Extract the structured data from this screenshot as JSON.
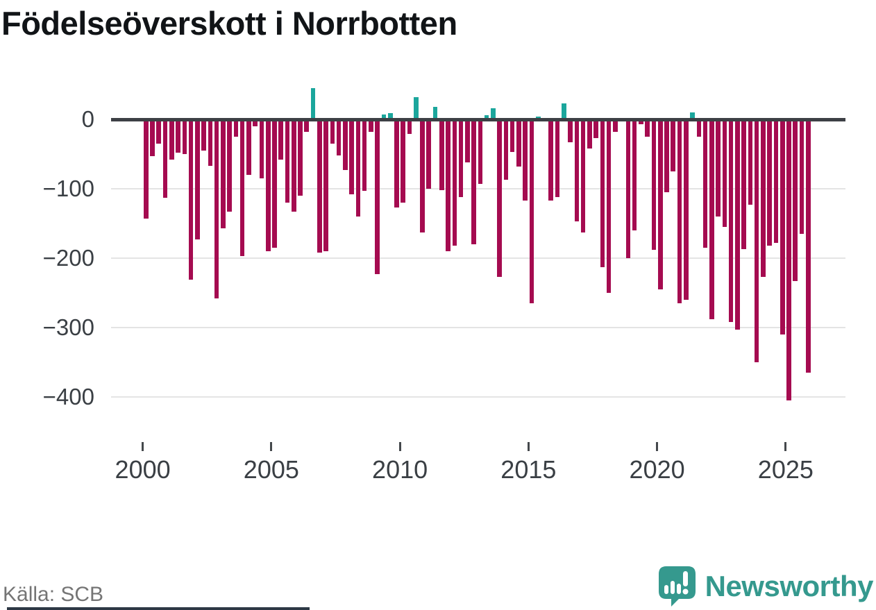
{
  "title": "Födelseöverskott i Norrbotten",
  "source": "Källa: SCB",
  "brand": {
    "name": "Newsworthy",
    "color": "#35998e"
  },
  "colors": {
    "positive": "#1ba69c",
    "negative": "#a50b50",
    "zero_line": "#3d4045",
    "gridline": "#e4e4e4",
    "axis_text": "#3a3f44",
    "source_text": "#757575"
  },
  "chart_data": {
    "type": "bar",
    "title": "Födelseöverskott i Norrbotten",
    "frequency": "quarterly",
    "start_period": "2000Q1",
    "end_period": "2025Q4",
    "values": [
      -143,
      -53,
      -35,
      -113,
      -58,
      -48,
      -50,
      -231,
      -173,
      -45,
      -67,
      -258,
      -157,
      -133,
      -25,
      -197,
      -80,
      -10,
      -85,
      -190,
      -185,
      -58,
      -120,
      -133,
      -110,
      -18,
      45,
      -192,
      -190,
      -35,
      -52,
      -73,
      -108,
      -140,
      -103,
      -18,
      -223,
      7,
      9,
      -127,
      -120,
      -21,
      32,
      -163,
      -100,
      18,
      -102,
      -190,
      -182,
      -112,
      -62,
      -180,
      -93,
      6,
      16,
      -227,
      -87,
      -47,
      -68,
      -117,
      -265,
      4,
      -3,
      -117,
      -112,
      23,
      -33,
      -147,
      -163,
      -42,
      -27,
      -213,
      -250,
      -18,
      -2,
      -200,
      -160,
      -7,
      -25,
      -188,
      -245,
      -105,
      -75,
      -265,
      -260,
      10,
      -25,
      -185,
      -288,
      -140,
      -155,
      -292,
      -303,
      -187,
      -123,
      -350,
      -227,
      -182,
      -178,
      -310,
      -405,
      -233,
      -165,
      -365
    ],
    "x_ticks": [
      2000,
      2005,
      2010,
      2015,
      2020,
      2025
    ],
    "y_ticks": [
      0,
      -100,
      -200,
      -300,
      -400
    ],
    "ylim": [
      -420,
      60
    ],
    "grid": true,
    "legend": "none"
  }
}
